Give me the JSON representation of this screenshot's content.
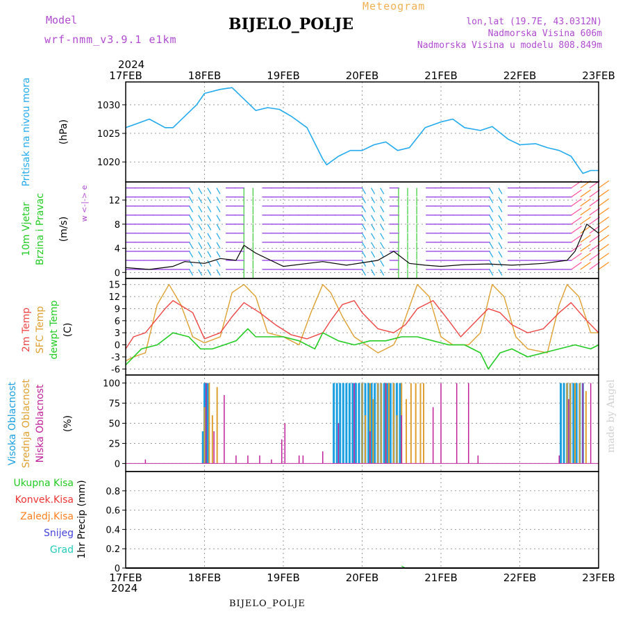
{
  "header": {
    "model_label": "Model",
    "model_name": "wrf-nmm_v3.9.1  e1km",
    "title": "BIJELO_POLJE",
    "subtitle": "Meteogram",
    "lonlat": "lon,lat (19.7E, 43.0312N)",
    "elevation": "Nadmorska Visina 606m",
    "model_elevation": "Nadmorska Visina u modelu 808.849m",
    "year_top": "2024",
    "year_bottom": "2024",
    "footer_station": "BIJELO_POLJE",
    "watermark": "made by Angel"
  },
  "colors": {
    "pressure": "#22aaee",
    "temp2m": "#ee4444",
    "sfc_temp": "#dda030",
    "dewpt": "#22cc22",
    "high_cloud": "#1aa0e0",
    "mid_cloud": "#e0a030",
    "low_cloud": "#c0209a",
    "total_precip": "#22cc22",
    "conv_precip": "#ee3333",
    "frozen_precip": "#ff8020",
    "snow": "#4444dd",
    "hail": "#22ccbb",
    "wind_label": "#22cc22",
    "compass": "#b04ad0",
    "pressure_label": "#22aaee"
  },
  "chart_data": [
    {
      "type": "line",
      "name": "pressure",
      "ylabel": "Pritisak na nivou mora",
      "yunit": "(hPa)",
      "ylim": [
        1016.5,
        1034
      ],
      "yticks": [
        1020,
        1025,
        1030
      ],
      "x_days": [
        "17FEB",
        "18FEB",
        "19FEB",
        "20FEB",
        "21FEB",
        "22FEB",
        "23FEB"
      ],
      "series": [
        {
          "x": [
            0,
            0.1,
            0.3,
            0.5,
            0.6,
            0.9,
            1.0,
            1.2,
            1.35,
            1.5,
            1.65,
            1.8,
            1.95,
            2.1,
            2.3,
            2.5,
            2.55,
            2.7,
            2.85,
            3.0,
            3.15,
            3.3,
            3.45,
            3.6,
            3.8,
            4.0,
            4.15,
            4.3,
            4.5,
            4.65,
            4.85,
            5.0,
            5.2,
            5.35,
            5.5,
            5.65,
            5.8,
            5.9,
            6.0
          ],
          "y": [
            1026,
            1026.5,
            1027.5,
            1026,
            1026,
            1030,
            1032,
            1032.7,
            1033,
            1031,
            1029,
            1029.5,
            1029.2,
            1028,
            1026,
            1020.5,
            1019.5,
            1021,
            1022,
            1022,
            1023,
            1023.5,
            1022,
            1022.5,
            1026,
            1027,
            1027.5,
            1026,
            1025.5,
            1026.2,
            1024,
            1023,
            1023.2,
            1022.5,
            1022,
            1021,
            1018,
            1018.5,
            1018.5
          ]
        }
      ]
    },
    {
      "type": "line",
      "name": "wind",
      "ylabel": "10m Vjetar",
      "ylabel2": "Brzina i Pravac",
      "yunit": "(m/s)",
      "compass": "w <-|-> e",
      "ylim": [
        -1,
        15
      ],
      "yticks": [
        0,
        4,
        8,
        12
      ],
      "series": [
        {
          "x": [
            0,
            0.3,
            0.6,
            0.75,
            1.0,
            1.2,
            1.4,
            1.5,
            1.65,
            2.0,
            2.5,
            2.8,
            3.2,
            3.4,
            3.6,
            3.8,
            4.0,
            4.3,
            4.6,
            4.9,
            5.3,
            5.6,
            5.7,
            5.85,
            6.0
          ],
          "y": [
            0.8,
            0.5,
            1.0,
            1.8,
            1.5,
            2.3,
            2.0,
            4.5,
            3.2,
            1.0,
            1.8,
            1.2,
            2.0,
            3.5,
            1.5,
            1.2,
            1.0,
            1.3,
            1.4,
            1.2,
            1.5,
            2.0,
            3.5,
            8.0,
            6.5
          ]
        }
      ]
    },
    {
      "type": "line",
      "name": "temperature",
      "ylabel": "2m Temp",
      "ylabel2": "SFC Temp",
      "ylabel3": "dewpt Temp",
      "yunit": "(C)",
      "ylim": [
        -7.5,
        16.5
      ],
      "yticks": [
        -6,
        -3,
        0,
        3,
        6,
        9,
        12,
        15
      ],
      "series": [
        {
          "name": "2m Temp",
          "x": [
            0,
            0.1,
            0.25,
            0.5,
            0.6,
            0.85,
            1.0,
            1.2,
            1.35,
            1.5,
            1.7,
            1.9,
            2.1,
            2.3,
            2.5,
            2.6,
            2.75,
            2.9,
            3.0,
            3.2,
            3.4,
            3.55,
            3.7,
            3.9,
            4.1,
            4.25,
            4.4,
            4.6,
            4.75,
            4.9,
            5.1,
            5.3,
            5.5,
            5.65,
            5.85,
            6.0
          ],
          "y": [
            -1,
            2,
            3,
            9,
            11,
            8,
            1.5,
            3,
            7,
            10.5,
            8,
            5,
            2.5,
            1.5,
            3,
            6,
            10,
            11,
            8,
            4,
            3,
            5,
            9,
            11,
            6,
            2,
            5,
            9,
            8,
            5,
            3,
            4,
            8,
            10.5,
            6,
            3
          ]
        },
        {
          "name": "SFC Temp",
          "x": [
            0,
            0.1,
            0.25,
            0.4,
            0.55,
            0.7,
            0.85,
            1.0,
            1.2,
            1.35,
            1.5,
            1.65,
            1.8,
            2.0,
            2.2,
            2.35,
            2.5,
            2.6,
            2.75,
            2.9,
            3.05,
            3.2,
            3.4,
            3.5,
            3.7,
            3.85,
            4.0,
            4.15,
            4.35,
            4.5,
            4.65,
            4.8,
            4.95,
            5.1,
            5.35,
            5.5,
            5.6,
            5.75,
            5.9,
            6.0
          ],
          "y": [
            -4,
            -3,
            -2,
            10,
            15,
            10,
            2,
            0.5,
            2,
            13,
            15,
            12,
            3,
            2,
            0,
            8,
            15,
            13,
            7,
            2,
            0,
            -2,
            0,
            4,
            15,
            12,
            2,
            0,
            0,
            3,
            15,
            12,
            2,
            -1,
            -2,
            10,
            15,
            12,
            3,
            3
          ]
        },
        {
          "name": "dewpt Temp",
          "x": [
            0,
            0.2,
            0.4,
            0.6,
            0.8,
            0.95,
            1.1,
            1.25,
            1.4,
            1.55,
            1.65,
            1.8,
            2.0,
            2.2,
            2.4,
            2.5,
            2.7,
            2.9,
            3.1,
            3.3,
            3.5,
            3.7,
            3.9,
            4.1,
            4.3,
            4.5,
            4.6,
            4.75,
            4.9,
            5.1,
            5.3,
            5.5,
            5.7,
            5.9,
            6.0
          ],
          "y": [
            -5,
            -1,
            0,
            3,
            2,
            -1,
            -1,
            0,
            1,
            4,
            2,
            2,
            2,
            1,
            -1,
            3,
            1,
            0,
            1,
            1,
            2,
            2,
            1,
            0,
            0,
            -2,
            -6,
            -2,
            -1,
            -3,
            -2,
            -1,
            0,
            -1,
            0
          ]
        }
      ]
    },
    {
      "type": "bar",
      "name": "cloud",
      "ylabel": "Visoka Oblacnost",
      "ylabel2": "Srednja Oblacnost",
      "ylabel3": "Niska Oblacnost",
      "yunit": "(%)",
      "ylim": [
        -10,
        110
      ],
      "yticks": [
        0,
        25,
        50,
        75,
        100
      ],
      "series": [
        {
          "name": "Visoka",
          "x": [
            0.98,
            1.0,
            1.02,
            1.04,
            2.64,
            2.68,
            2.72,
            2.76,
            2.8,
            2.84,
            2.88,
            2.92,
            2.96,
            3.0,
            3.04,
            3.08,
            3.12,
            3.16,
            3.2,
            3.24,
            3.28,
            3.32,
            3.36,
            3.4,
            3.44,
            3.48,
            5.52,
            5.56,
            5.6,
            5.64,
            5.68,
            5.72,
            5.76,
            5.8
          ],
          "y": [
            40,
            100,
            100,
            100,
            100,
            100,
            100,
            100,
            100,
            100,
            100,
            100,
            100,
            100,
            100,
            100,
            100,
            100,
            100,
            100,
            100,
            100,
            100,
            100,
            100,
            100,
            100,
            100,
            100,
            100,
            100,
            100,
            100,
            100
          ]
        },
        {
          "name": "Srednja",
          "x": [
            1.0,
            1.06,
            1.1,
            1.16,
            3.0,
            3.04,
            3.1,
            3.14,
            3.2,
            3.24,
            3.3,
            3.34,
            3.4,
            3.44,
            3.5,
            3.56,
            3.62,
            3.68,
            3.74,
            3.78,
            5.6,
            5.64,
            5.7,
            5.76,
            5.84
          ],
          "y": [
            70,
            100,
            60,
            95,
            100,
            60,
            100,
            80,
            100,
            100,
            100,
            100,
            100,
            60,
            100,
            80,
            100,
            100,
            100,
            100,
            100,
            100,
            100,
            100,
            90
          ]
        },
        {
          "name": "Niska",
          "x": [
            0.25,
            1.02,
            1.12,
            1.25,
            1.4,
            1.55,
            1.7,
            1.85,
            1.98,
            2.02,
            2.2,
            2.25,
            2.5,
            2.7,
            2.9,
            3.1,
            3.3,
            3.5,
            3.9,
            4.0,
            4.2,
            4.35,
            4.47,
            5.5,
            5.62,
            5.8,
            5.9
          ],
          "y": [
            5,
            100,
            40,
            85,
            10,
            10,
            10,
            5,
            30,
            50,
            10,
            10,
            15,
            50,
            100,
            40,
            100,
            60,
            70,
            100,
            100,
            100,
            10,
            10,
            80,
            100,
            100
          ]
        }
      ]
    },
    {
      "type": "line",
      "name": "precip",
      "ylabel": "1hr Precip",
      "yunit": "(mm)",
      "legend": [
        "Ukupna Kisa",
        "Konvek.Kisa",
        "Zaledj.Kisa",
        "Snijeg",
        "Grad"
      ],
      "ylim": [
        0,
        1.0
      ],
      "yticks": [
        0,
        0.2,
        0.4,
        0.6,
        0.8
      ],
      "series": [
        {
          "name": "Ukupna Kisa",
          "x": [
            3.5,
            3.55
          ],
          "y": [
            0.02,
            0.0
          ]
        }
      ]
    }
  ]
}
